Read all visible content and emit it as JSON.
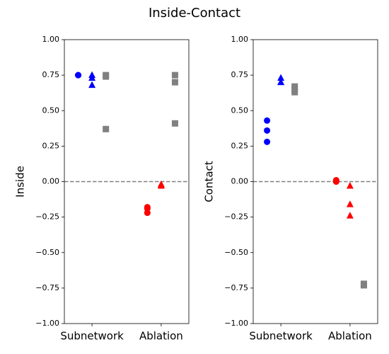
{
  "title": "Inside-Contact",
  "chart_data": [
    {
      "type": "scatter",
      "ylabel": "Inside",
      "categories": [
        "Subnetwork",
        "Ablation"
      ],
      "ylim": [
        -1,
        1
      ],
      "yticks": [
        {
          "value": -1,
          "label": "−1.00"
        },
        {
          "value": -0.75,
          "label": "−0.75"
        },
        {
          "value": -0.5,
          "label": "−0.50"
        },
        {
          "value": -0.25,
          "label": "−0.25"
        },
        {
          "value": 0,
          "label": "0.00"
        },
        {
          "value": 0.25,
          "label": "0.25"
        },
        {
          "value": 0.5,
          "label": "0.50"
        },
        {
          "value": 0.75,
          "label": "0.75"
        },
        {
          "value": 1,
          "label": "1.00"
        }
      ],
      "reference_line": {
        "y": 0,
        "color": "#808080",
        "style": "dashed"
      },
      "series": [
        {
          "marker": "circle",
          "colors": [
            "#0000ff",
            "#ff0000"
          ],
          "values": [
            [
              0.75,
              0.75,
              0.75
            ],
            [
              -0.18,
              -0.19,
              -0.22
            ]
          ]
        },
        {
          "marker": "triangle",
          "colors": [
            "#0000ff",
            "#ff0000"
          ],
          "values": [
            [
              0.75,
              0.73,
              0.68
            ],
            [
              -0.02,
              -0.02,
              -0.03
            ]
          ]
        },
        {
          "marker": "square",
          "colors": [
            "#808080",
            "#808080"
          ],
          "values": [
            [
              0.75,
              0.74,
              0.37
            ],
            [
              0.75,
              0.7,
              0.41
            ]
          ]
        }
      ]
    },
    {
      "type": "scatter",
      "ylabel": "Contact",
      "categories": [
        "Subnetwork",
        "Ablation"
      ],
      "ylim": [
        -1,
        1
      ],
      "yticks": [
        {
          "value": -1,
          "label": "−1.00"
        },
        {
          "value": -0.75,
          "label": "−0.75"
        },
        {
          "value": -0.5,
          "label": "−0.50"
        },
        {
          "value": -0.25,
          "label": "−0.25"
        },
        {
          "value": 0,
          "label": "0.00"
        },
        {
          "value": 0.25,
          "label": "0.25"
        },
        {
          "value": 0.5,
          "label": "0.50"
        },
        {
          "value": 0.75,
          "label": "0.75"
        },
        {
          "value": 1,
          "label": "1.00"
        }
      ],
      "reference_line": {
        "y": 0,
        "color": "#808080",
        "style": "dashed"
      },
      "series": [
        {
          "marker": "circle",
          "colors": [
            "#0000ff",
            "#ff0000"
          ],
          "values": [
            [
              0.43,
              0.36,
              0.28
            ],
            [
              0.0,
              0.0,
              0.01
            ]
          ]
        },
        {
          "marker": "triangle",
          "colors": [
            "#0000ff",
            "#ff0000"
          ],
          "values": [
            [
              0.73,
              0.7,
              0.7
            ],
            [
              -0.03,
              -0.16,
              -0.24
            ]
          ]
        },
        {
          "marker": "square",
          "colors": [
            "#808080",
            "#808080"
          ],
          "values": [
            [
              0.67,
              0.65,
              0.63
            ],
            [
              -0.73,
              -0.73,
              -0.72
            ]
          ]
        }
      ]
    }
  ]
}
